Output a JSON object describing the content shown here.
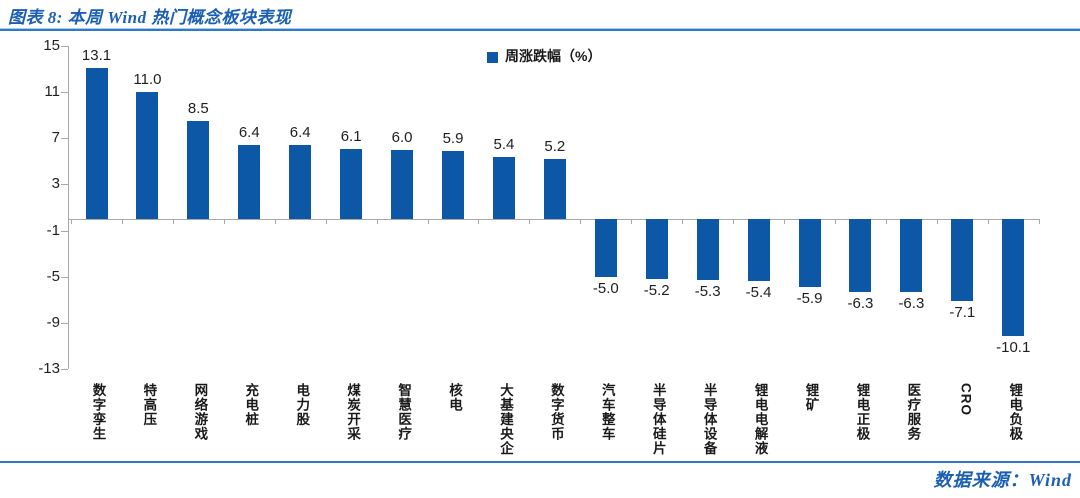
{
  "header": {
    "title": "图表 8: 本周 Wind 热门概念板块表现"
  },
  "legend": {
    "label": "周涨跌幅（%）"
  },
  "footer": {
    "source": "数据来源：Wind"
  },
  "colors": {
    "bar": "#0D58A6",
    "accent_line": "#2E79C8",
    "title_text": "#1A5FB4",
    "axis": "#A8A8A8"
  },
  "chart_data": {
    "type": "bar",
    "title": "本周 Wind 热门概念板块表现",
    "legend": [
      "周涨跌幅（%）"
    ],
    "legend_position": "top-center",
    "categories": [
      "数字孪生",
      "特高压",
      "网络游戏",
      "充电桩",
      "电力股",
      "煤炭开采",
      "智慧医疗",
      "核电",
      "大基建央企",
      "数字货币",
      "汽车整车",
      "半导体硅片",
      "半导体设备",
      "锂电电解液",
      "锂矿",
      "锂电正极",
      "医疗服务",
      "CRO",
      "锂电负极"
    ],
    "series": [
      {
        "name": "周涨跌幅（%）",
        "values": [
          13.1,
          11.0,
          8.5,
          6.4,
          6.4,
          6.1,
          6.0,
          5.9,
          5.4,
          5.2,
          -5.0,
          -5.2,
          -5.3,
          -5.4,
          -5.9,
          -6.3,
          -6.3,
          -7.1,
          -10.1
        ]
      }
    ],
    "xlabel": "",
    "ylabel": "",
    "ylim": [
      -13,
      15
    ],
    "yticks": [
      15,
      11,
      7,
      3,
      -1,
      -5,
      -9,
      -13
    ],
    "grid": false,
    "bar_color": "#0D58A6",
    "data_labels": true
  }
}
